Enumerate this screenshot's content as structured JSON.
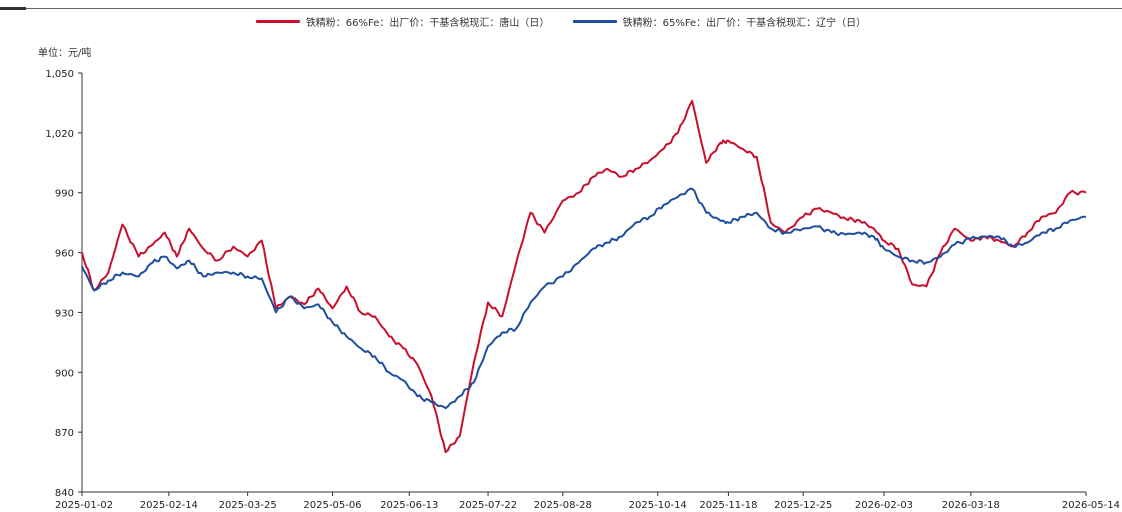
{
  "chart_data": {
    "type": "line",
    "unit_label": "单位：元/吨",
    "ylim": [
      840,
      1050
    ],
    "y_ticks": [
      "840",
      "870",
      "900",
      "930",
      "960",
      "990",
      "1,020",
      "1,050"
    ],
    "x_ticks": [
      "2025-01-02",
      "2025-02-14",
      "2025-03-25",
      "2025-05-06",
      "2025-06-13",
      "2025-07-22",
      "2025-08-28",
      "2025-10-14",
      "2025-11-18",
      "2025-12-25",
      "2026-02-03",
      "2026-03-18",
      "2026-05-14"
    ],
    "legend_position": "top",
    "grid": false,
    "series": [
      {
        "name": "铁精粉：66%Fe：出厂价：干基含税现汇：唐山（日）",
        "color": "#c8102e",
        "values": [
          [
            "2025-01-02",
            960
          ],
          [
            "2025-01-08",
            941
          ],
          [
            "2025-01-15",
            950
          ],
          [
            "2025-01-22",
            974
          ],
          [
            "2025-01-30",
            958
          ],
          [
            "2025-02-06",
            964
          ],
          [
            "2025-02-12",
            970
          ],
          [
            "2025-02-18",
            958
          ],
          [
            "2025-02-24",
            972
          ],
          [
            "2025-03-03",
            962
          ],
          [
            "2025-03-10",
            956
          ],
          [
            "2025-03-18",
            963
          ],
          [
            "2025-03-25",
            958
          ],
          [
            "2025-04-01",
            966
          ],
          [
            "2025-04-08",
            932
          ],
          [
            "2025-04-15",
            938
          ],
          [
            "2025-04-22",
            934
          ],
          [
            "2025-04-29",
            942
          ],
          [
            "2025-05-06",
            932
          ],
          [
            "2025-05-13",
            943
          ],
          [
            "2025-05-20",
            930
          ],
          [
            "2025-05-27",
            928
          ],
          [
            "2025-06-03",
            918
          ],
          [
            "2025-06-10",
            912
          ],
          [
            "2025-06-17",
            904
          ],
          [
            "2025-06-24",
            888
          ],
          [
            "2025-07-01",
            860
          ],
          [
            "2025-07-08",
            868
          ],
          [
            "2025-07-15",
            905
          ],
          [
            "2025-07-22",
            935
          ],
          [
            "2025-07-29",
            928
          ],
          [
            "2025-08-05",
            955
          ],
          [
            "2025-08-12",
            980
          ],
          [
            "2025-08-19",
            970
          ],
          [
            "2025-08-28",
            986
          ],
          [
            "2025-09-05",
            990
          ],
          [
            "2025-09-12",
            998
          ],
          [
            "2025-09-19",
            1002
          ],
          [
            "2025-09-26",
            998
          ],
          [
            "2025-10-03",
            1002
          ],
          [
            "2025-10-10",
            1006
          ],
          [
            "2025-10-17",
            1012
          ],
          [
            "2025-10-24",
            1020
          ],
          [
            "2025-10-31",
            1036
          ],
          [
            "2025-11-07",
            1005
          ],
          [
            "2025-11-14",
            1015
          ],
          [
            "2025-11-18",
            1016
          ],
          [
            "2025-11-25",
            1012
          ],
          [
            "2025-12-02",
            1008
          ],
          [
            "2025-12-09",
            975
          ],
          [
            "2025-12-16",
            970
          ],
          [
            "2025-12-25",
            978
          ],
          [
            "2026-01-01",
            982
          ],
          [
            "2026-01-08",
            980
          ],
          [
            "2026-01-15",
            977
          ],
          [
            "2026-01-22",
            976
          ],
          [
            "2026-01-29",
            972
          ],
          [
            "2026-02-03",
            966
          ],
          [
            "2026-02-10",
            962
          ],
          [
            "2026-02-17",
            944
          ],
          [
            "2026-02-24",
            943
          ],
          [
            "2026-03-03",
            960
          ],
          [
            "2026-03-10",
            972
          ],
          [
            "2026-03-18",
            966
          ],
          [
            "2026-03-25",
            968
          ],
          [
            "2026-04-01",
            966
          ],
          [
            "2026-04-08",
            963
          ],
          [
            "2026-04-15",
            970
          ],
          [
            "2026-04-22",
            978
          ],
          [
            "2026-04-29",
            980
          ],
          [
            "2026-05-06",
            990
          ],
          [
            "2026-05-14",
            990
          ]
        ]
      },
      {
        "name": "铁精粉：65%Fe：出厂价：干基含税现汇：辽宁（日）",
        "color": "#1f4e9c",
        "values": [
          [
            "2025-01-02",
            953
          ],
          [
            "2025-01-08",
            941
          ],
          [
            "2025-01-15",
            946
          ],
          [
            "2025-01-22",
            950
          ],
          [
            "2025-01-30",
            948
          ],
          [
            "2025-02-06",
            955
          ],
          [
            "2025-02-12",
            958
          ],
          [
            "2025-02-18",
            952
          ],
          [
            "2025-02-24",
            956
          ],
          [
            "2025-03-03",
            948
          ],
          [
            "2025-03-10",
            950
          ],
          [
            "2025-03-18",
            950
          ],
          [
            "2025-03-25",
            948
          ],
          [
            "2025-04-01",
            947
          ],
          [
            "2025-04-08",
            930
          ],
          [
            "2025-04-15",
            938
          ],
          [
            "2025-04-22",
            932
          ],
          [
            "2025-04-29",
            934
          ],
          [
            "2025-05-06",
            925
          ],
          [
            "2025-05-13",
            918
          ],
          [
            "2025-05-20",
            912
          ],
          [
            "2025-05-27",
            908
          ],
          [
            "2025-06-03",
            900
          ],
          [
            "2025-06-10",
            896
          ],
          [
            "2025-06-17",
            888
          ],
          [
            "2025-06-24",
            885
          ],
          [
            "2025-07-01",
            882
          ],
          [
            "2025-07-08",
            888
          ],
          [
            "2025-07-15",
            895
          ],
          [
            "2025-07-22",
            913
          ],
          [
            "2025-07-29",
            920
          ],
          [
            "2025-08-05",
            922
          ],
          [
            "2025-08-12",
            935
          ],
          [
            "2025-08-19",
            943
          ],
          [
            "2025-08-28",
            948
          ],
          [
            "2025-09-05",
            955
          ],
          [
            "2025-09-12",
            962
          ],
          [
            "2025-09-19",
            965
          ],
          [
            "2025-09-26",
            968
          ],
          [
            "2025-10-03",
            975
          ],
          [
            "2025-10-10",
            978
          ],
          [
            "2025-10-17",
            984
          ],
          [
            "2025-10-24",
            988
          ],
          [
            "2025-10-31",
            992
          ],
          [
            "2025-11-07",
            980
          ],
          [
            "2025-11-14",
            976
          ],
          [
            "2025-11-18",
            975
          ],
          [
            "2025-11-25",
            978
          ],
          [
            "2025-12-02",
            980
          ],
          [
            "2025-12-09",
            972
          ],
          [
            "2025-12-16",
            970
          ],
          [
            "2025-12-25",
            972
          ],
          [
            "2026-01-01",
            973
          ],
          [
            "2026-01-08",
            970
          ],
          [
            "2026-01-15",
            969
          ],
          [
            "2026-01-22",
            970
          ],
          [
            "2026-01-29",
            968
          ],
          [
            "2026-02-03",
            962
          ],
          [
            "2026-02-10",
            958
          ],
          [
            "2026-02-17",
            956
          ],
          [
            "2026-02-24",
            955
          ],
          [
            "2026-03-03",
            958
          ],
          [
            "2026-03-10",
            964
          ],
          [
            "2026-03-18",
            967
          ],
          [
            "2026-03-25",
            968
          ],
          [
            "2026-04-01",
            968
          ],
          [
            "2026-04-08",
            963
          ],
          [
            "2026-04-15",
            965
          ],
          [
            "2026-04-22",
            970
          ],
          [
            "2026-04-29",
            972
          ],
          [
            "2026-05-06",
            976
          ],
          [
            "2026-05-14",
            978
          ]
        ]
      }
    ]
  }
}
